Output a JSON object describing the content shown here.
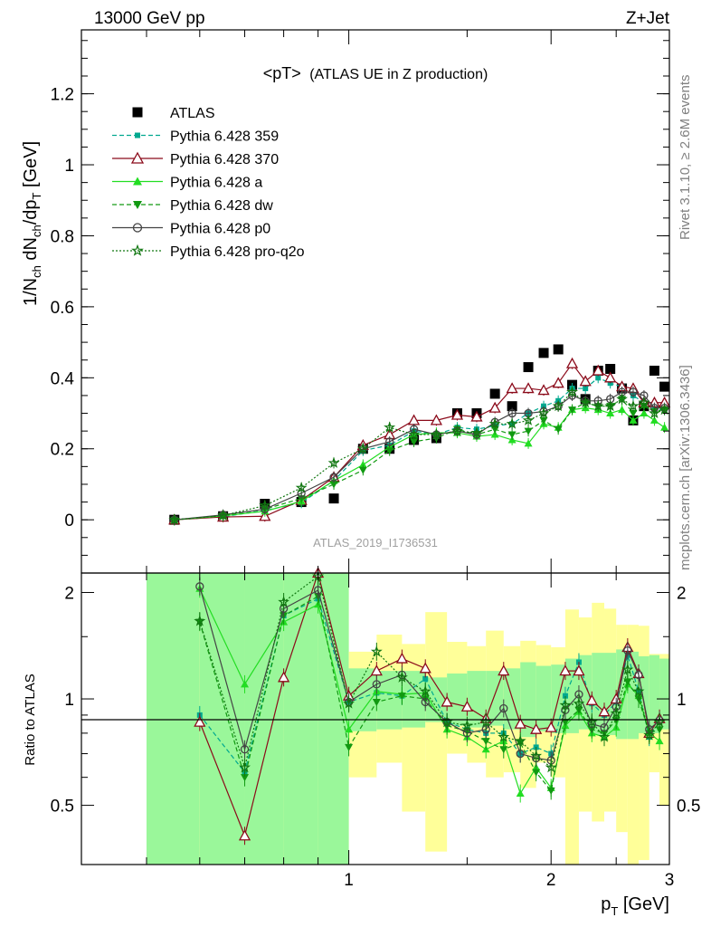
{
  "header": {
    "left": "13000 GeV pp",
    "right": "Z+Jet"
  },
  "side_labels": {
    "rivet": "Rivet 3.1.10, ≥ 2.6M events",
    "mcplots": "mcplots.cern.ch [arXiv:1306.3436]"
  },
  "plot_title": {
    "main": "<pT>",
    "sub": "(ATLAS UE in Z production)"
  },
  "watermark": "ATLAS_2019_I1736531",
  "colors": {
    "atlas": "#000000",
    "p359": "#00a88f",
    "p370": "#8b0a1a",
    "pa": "#22dd22",
    "pdw": "#119911",
    "pp0": "#444444",
    "pq2o": "#117711",
    "band_green": "#9af79a",
    "band_yellow": "#ffff99"
  },
  "chart_data": [
    {
      "type": "line",
      "panel": "main",
      "xlabel": "p_T [GeV]",
      "ylabel": "1/N_ch dN_ch/dp_T [GeV]",
      "xlim": [
        0.4,
        3.0
      ],
      "ylim": [
        -0.15,
        1.38
      ],
      "xscale": "log",
      "x_ticks": [
        1,
        2,
        3
      ],
      "y_ticks": [
        0,
        0.2,
        0.4,
        0.6,
        0.8,
        1,
        1.2
      ],
      "y_tick_labels": [
        "0",
        "0.2",
        "0.4",
        "0.6",
        "0.8",
        "1",
        "1.2"
      ],
      "legend_position": "top-left",
      "x": [
        0.55,
        0.65,
        0.75,
        0.85,
        0.95,
        1.05,
        1.15,
        1.25,
        1.35,
        1.45,
        1.55,
        1.65,
        1.75,
        1.85,
        1.95,
        2.05,
        2.15,
        2.25,
        2.35,
        2.45,
        2.55,
        2.65,
        2.75,
        2.85,
        2.95
      ],
      "series": [
        {
          "name": "ATLAS",
          "marker": "square",
          "line": "none",
          "color_key": "atlas",
          "values": [
            0.0,
            0.01,
            0.045,
            0.05,
            0.06,
            0.2,
            0.2,
            0.225,
            0.23,
            0.3,
            0.3,
            0.355,
            0.32,
            0.43,
            0.47,
            0.48,
            0.38,
            0.34,
            0.42,
            0.425,
            0.37,
            0.28,
            0.32,
            0.42,
            0.375
          ]
        },
        {
          "name": "Pythia 6.428 359",
          "marker": "square-small",
          "line": "dashed",
          "color_key": "p359",
          "values": [
            0.0,
            0.009,
            0.026,
            0.048,
            0.11,
            0.195,
            0.21,
            0.25,
            0.24,
            0.26,
            0.255,
            0.265,
            0.27,
            0.3,
            0.32,
            0.335,
            0.37,
            0.37,
            0.4,
            0.385,
            0.375,
            0.35,
            0.33,
            0.31,
            0.31
          ]
        },
        {
          "name": "Pythia 6.428 370",
          "marker": "triangle-open",
          "line": "solid",
          "color_key": "p370",
          "values": [
            0.0,
            0.008,
            0.01,
            0.055,
            0.12,
            0.21,
            0.24,
            0.28,
            0.28,
            0.295,
            0.29,
            0.315,
            0.37,
            0.37,
            0.365,
            0.385,
            0.44,
            0.39,
            0.42,
            0.4,
            0.375,
            0.37,
            0.33,
            0.33,
            0.33
          ]
        },
        {
          "name": "Pythia 6.428 a",
          "marker": "triangle-filled",
          "line": "solid",
          "color_key": "pa",
          "values": [
            0.0,
            0.011,
            0.024,
            0.052,
            0.11,
            0.155,
            0.205,
            0.24,
            0.245,
            0.245,
            0.235,
            0.24,
            0.225,
            0.215,
            0.27,
            0.26,
            0.31,
            0.315,
            0.31,
            0.3,
            0.31,
            0.28,
            0.3,
            0.28,
            0.26
          ]
        },
        {
          "name": "Pythia 6.428 dw",
          "marker": "triangle-down",
          "line": "dashed",
          "color_key": "pdw",
          "values": [
            0.0,
            0.012,
            0.03,
            0.06,
            0.1,
            0.14,
            0.195,
            0.22,
            0.23,
            0.255,
            0.24,
            0.255,
            0.24,
            0.25,
            0.28,
            0.255,
            0.31,
            0.33,
            0.32,
            0.32,
            0.34,
            0.3,
            0.32,
            0.305,
            0.31
          ]
        },
        {
          "name": "Pythia 6.428 p0",
          "marker": "circle-open",
          "line": "solid",
          "color_key": "pp0",
          "values": [
            0.0,
            0.014,
            0.03,
            0.075,
            0.12,
            0.2,
            0.22,
            0.255,
            0.24,
            0.25,
            0.24,
            0.275,
            0.3,
            0.3,
            0.305,
            0.32,
            0.35,
            0.335,
            0.335,
            0.34,
            0.36,
            0.36,
            0.35,
            0.315,
            0.315
          ]
        },
        {
          "name": "Pythia 6.428 pro-q2o",
          "marker": "star-open",
          "line": "dotted",
          "color_key": "pq2o",
          "values": [
            0.0,
            0.012,
            0.04,
            0.09,
            0.16,
            0.2,
            0.26,
            0.24,
            0.24,
            0.25,
            0.245,
            0.27,
            0.27,
            0.28,
            0.3,
            0.32,
            0.36,
            0.33,
            0.32,
            0.32,
            0.34,
            0.32,
            0.33,
            0.3,
            0.31
          ]
        }
      ]
    },
    {
      "type": "line",
      "panel": "ratio",
      "xlabel": "p_T [GeV]",
      "ylabel": "Ratio to ATLAS",
      "xlim": [
        0.4,
        3.0
      ],
      "ylim": [
        0.34,
        2.27
      ],
      "xscale": "log",
      "x_ticks": [
        1,
        2,
        3
      ],
      "x_tick_labels": [
        "1",
        "2",
        "3"
      ],
      "y_ticks": [
        0.5,
        1,
        2
      ],
      "y_tick_labels": [
        "0.5",
        "1",
        "2"
      ],
      "reference_line": 1,
      "band_edges": [
        0.5,
        0.6,
        0.7,
        0.8,
        0.9,
        1.0,
        1.1,
        1.2,
        1.3,
        1.4,
        1.5,
        1.6,
        1.7,
        1.8,
        1.9,
        2.0,
        2.1,
        2.2,
        2.3,
        2.4,
        2.5,
        2.6,
        2.7,
        2.8,
        2.9,
        3.0
      ],
      "band_green_lo": [
        0.3,
        0.3,
        0.3,
        0.3,
        0.3,
        0.81,
        0.82,
        0.83,
        0.86,
        0.84,
        0.83,
        0.84,
        0.82,
        0.78,
        0.81,
        0.8,
        0.8,
        0.82,
        0.79,
        0.79,
        0.77,
        0.77,
        0.8,
        0.8,
        0.82
      ],
      "band_green_hi": [
        2.5,
        2.5,
        2.5,
        2.5,
        2.5,
        1.22,
        1.2,
        1.2,
        1.15,
        1.18,
        1.2,
        1.2,
        1.22,
        1.27,
        1.24,
        1.25,
        1.3,
        1.33,
        1.35,
        1.35,
        1.38,
        1.36,
        1.32,
        1.33,
        1.3
      ],
      "band_yellow_lo": [
        0.3,
        0.3,
        0.3,
        0.3,
        0.3,
        0.6,
        0.66,
        0.48,
        0.37,
        0.7,
        0.66,
        0.6,
        0.62,
        0.56,
        0.66,
        0.6,
        0.3,
        0.48,
        0.45,
        0.48,
        0.42,
        0.3,
        0.35,
        0.62,
        0.5
      ],
      "band_yellow_hi": [
        2.5,
        2.5,
        2.5,
        2.5,
        2.5,
        1.36,
        1.52,
        1.43,
        1.76,
        1.45,
        1.41,
        1.56,
        1.41,
        1.46,
        1.42,
        1.4,
        1.79,
        1.7,
        1.87,
        1.8,
        1.62,
        1.62,
        1.61,
        1.34,
        1.34
      ],
      "x": [
        0.6,
        0.7,
        0.8,
        0.9,
        1.0,
        1.1,
        1.2,
        1.3,
        1.4,
        1.5,
        1.6,
        1.7,
        1.8,
        1.9,
        2.0,
        2.1,
        2.2,
        2.3,
        2.4,
        2.5,
        2.6,
        2.7,
        2.8,
        2.9
      ],
      "series": [
        {
          "name": "Pythia 6.428 359",
          "color_key": "p359",
          "marker": "square-small",
          "line": "dashed",
          "values": [
            0.9,
            0.62,
            1.72,
            1.92,
            0.98,
            1.04,
            1.02,
            1.14,
            0.86,
            0.82,
            0.8,
            0.8,
            0.7,
            0.73,
            0.7,
            1.02,
            1.27,
            0.97,
            0.9,
            0.98,
            1.33,
            1.05,
            0.78,
            0.86
          ]
        },
        {
          "name": "Pythia 6.428 370",
          "color_key": "p370",
          "marker": "triangle-open",
          "line": "solid",
          "values": [
            0.86,
            0.41,
            1.15,
            2.27,
            1.02,
            1.2,
            1.3,
            1.22,
            0.98,
            0.95,
            0.88,
            1.2,
            0.85,
            0.82,
            0.83,
            1.2,
            1.2,
            0.99,
            0.92,
            1.0,
            1.4,
            1.18,
            0.8,
            0.88
          ]
        },
        {
          "name": "Pythia 6.428 a",
          "color_key": "pa",
          "marker": "triangle-filled",
          "line": "solid",
          "values": [
            2.05,
            1.1,
            1.65,
            1.85,
            0.82,
            1.05,
            1.03,
            1.04,
            0.82,
            0.78,
            0.72,
            0.76,
            0.54,
            0.64,
            0.56,
            0.84,
            0.92,
            0.8,
            0.78,
            0.83,
            1.1,
            1.02,
            0.8,
            0.76
          ]
        },
        {
          "name": "Pythia 6.428 dw",
          "color_key": "pdw",
          "marker": "triangle-down",
          "line": "dashed",
          "values": [
            1.65,
            0.6,
            1.72,
            1.95,
            0.73,
            0.98,
            1.02,
            1.0,
            0.84,
            0.81,
            0.76,
            0.72,
            0.75,
            0.62,
            0.55,
            0.86,
            0.93,
            0.82,
            0.8,
            0.87,
            1.12,
            1.0,
            0.8,
            0.82
          ]
        },
        {
          "name": "Pythia 6.428 p0",
          "color_key": "pp0",
          "marker": "circle-open",
          "line": "solid",
          "values": [
            2.08,
            0.72,
            1.8,
            2.03,
            0.98,
            1.1,
            1.17,
            0.98,
            0.86,
            0.8,
            0.82,
            0.94,
            0.7,
            0.68,
            0.67,
            0.93,
            1.03,
            0.85,
            0.83,
            0.95,
            1.37,
            1.17,
            0.82,
            0.87
          ]
        },
        {
          "name": "Pythia 6.428 pro-q2o",
          "color_key": "pq2o",
          "marker": "star-open",
          "line": "dotted",
          "values": [
            1.66,
            0.64,
            1.88,
            2.22,
            0.97,
            1.36,
            1.15,
            1.05,
            0.86,
            0.84,
            0.86,
            0.78,
            0.76,
            0.69,
            0.64,
            0.96,
            0.97,
            0.86,
            0.78,
            0.91,
            1.21,
            1.05,
            0.79,
            0.86
          ]
        }
      ]
    }
  ]
}
